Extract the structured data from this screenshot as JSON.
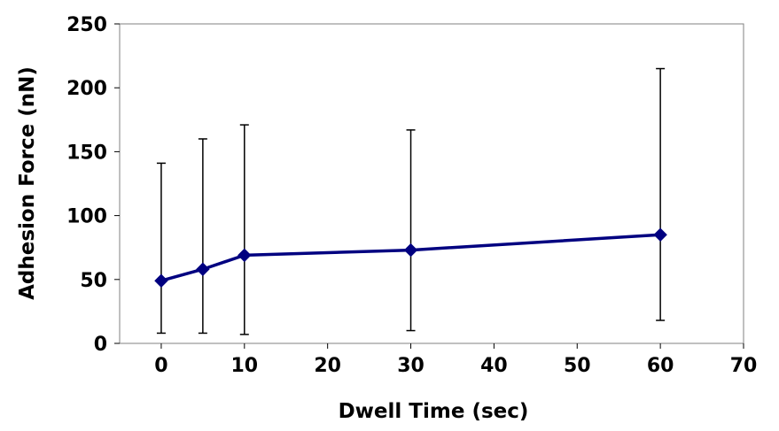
{
  "chart_data": {
    "type": "line",
    "title": "",
    "xlabel": "Dwell Time (sec)",
    "ylabel": "Adhesion Force (nN)",
    "xlim": [
      -5,
      70
    ],
    "ylim": [
      0,
      250
    ],
    "xticks": [
      0,
      10,
      20,
      30,
      40,
      50,
      60,
      70
    ],
    "yticks": [
      0,
      50,
      100,
      150,
      200,
      250
    ],
    "grid": false,
    "legend": "none",
    "series": [
      {
        "name": "Adhesion Force",
        "color": "#000080",
        "marker": "diamond",
        "points": [
          {
            "x": 0,
            "y": 49,
            "err_low": 8,
            "err_high": 141
          },
          {
            "x": 5,
            "y": 58,
            "err_low": 8,
            "err_high": 160
          },
          {
            "x": 10,
            "y": 69,
            "err_low": 7,
            "err_high": 171
          },
          {
            "x": 30,
            "y": 73,
            "err_low": 10,
            "err_high": 167
          },
          {
            "x": 60,
            "y": 85,
            "err_low": 18,
            "err_high": 215
          }
        ]
      }
    ]
  }
}
